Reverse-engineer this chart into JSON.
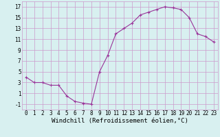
{
  "x": [
    0,
    1,
    2,
    3,
    4,
    5,
    6,
    7,
    8,
    9,
    10,
    11,
    12,
    13,
    14,
    15,
    16,
    17,
    18,
    19,
    20,
    21,
    22,
    23
  ],
  "y": [
    4,
    3,
    3,
    2.5,
    2.5,
    0.5,
    -0.5,
    -0.8,
    -1,
    5,
    8,
    12,
    13,
    14,
    15.5,
    16,
    16.5,
    17,
    16.8,
    16.5,
    15,
    12,
    11.5,
    10.5
  ],
  "line_color": "#993399",
  "marker": "+",
  "marker_size": 3,
  "bg_color": "#d8f0f0",
  "grid_color": "#cc99cc",
  "xlabel": "Windchill (Refroidissement éolien,°C)",
  "xlim": [
    -0.5,
    23.5
  ],
  "ylim": [
    -2,
    18
  ],
  "xticks": [
    0,
    1,
    2,
    3,
    4,
    5,
    6,
    7,
    8,
    9,
    10,
    11,
    12,
    13,
    14,
    15,
    16,
    17,
    18,
    19,
    20,
    21,
    22,
    23
  ],
  "yticks": [
    -1,
    1,
    3,
    5,
    7,
    9,
    11,
    13,
    15,
    17
  ],
  "tick_fontsize": 5.5,
  "xlabel_fontsize": 6.5
}
